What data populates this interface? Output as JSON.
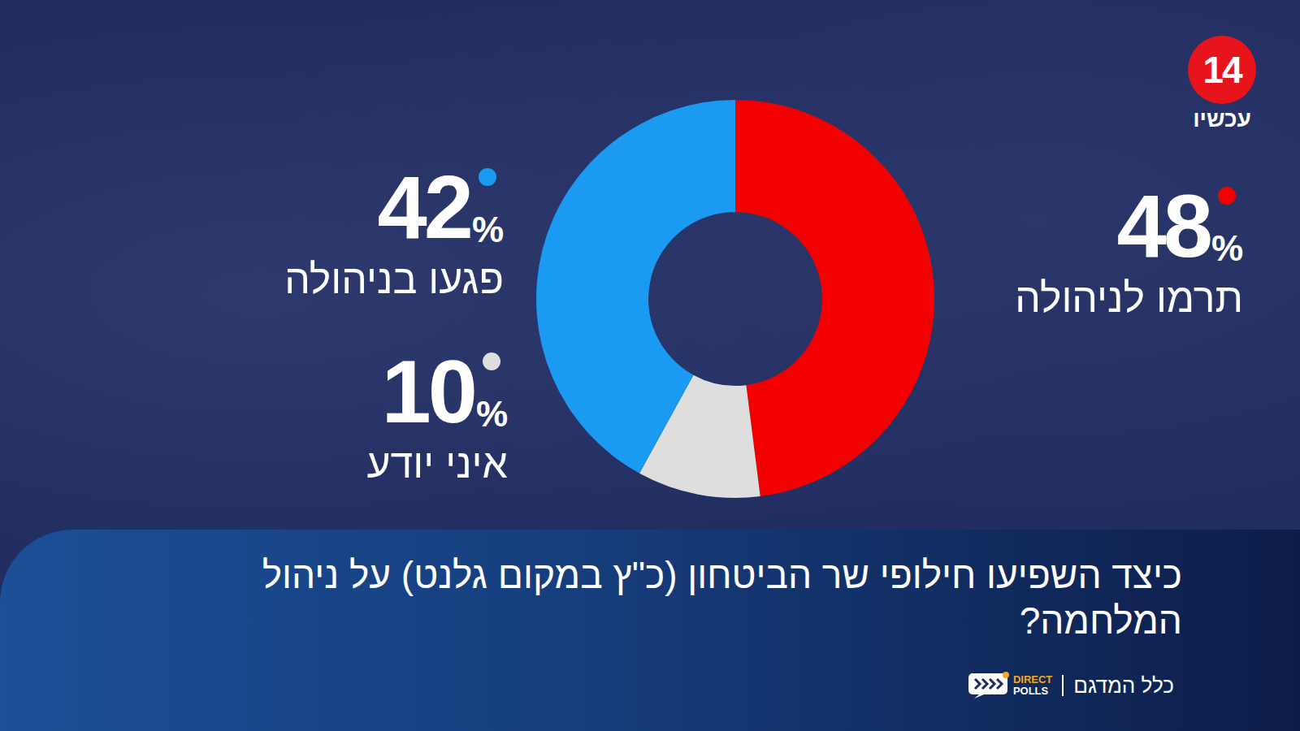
{
  "chart_data": {
    "type": "donut",
    "title": "כיצד השפיעו חילופי שר הביטחון (כ\"ץ במקום גלנט) על ניהול המלחמה?",
    "categories": [
      "תרמו לניהולה",
      "איני יודע",
      "פגעו בניהולה"
    ],
    "values": [
      48,
      10,
      42
    ],
    "value_labels": [
      "48%",
      "10%",
      "42%"
    ],
    "colors": [
      "#f50000",
      "#dedede",
      "#1a9af0"
    ],
    "data_labels": true
  },
  "logo": {
    "number": "14",
    "name": "עכשיו"
  },
  "source": {
    "label": "כלל המדגם",
    "brand_top": "DIRECT",
    "brand_bottom": "POLLS"
  }
}
